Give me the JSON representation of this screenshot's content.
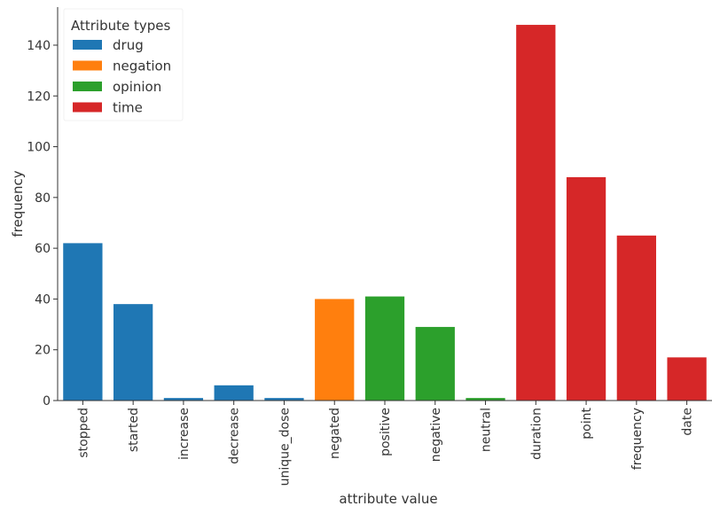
{
  "chart_data": {
    "type": "bar",
    "xlabel": "attribute value",
    "ylabel": "frequency",
    "ylim": [
      0,
      155
    ],
    "yticks": [
      0,
      20,
      40,
      60,
      80,
      100,
      120,
      140
    ],
    "grid": false,
    "legend": {
      "title": "Attribute types",
      "placement": "top-left",
      "entries": [
        {
          "name": "drug",
          "color": "#1f77b4"
        },
        {
          "name": "negation",
          "color": "#ff7f0e"
        },
        {
          "name": "opinion",
          "color": "#2ca02c"
        },
        {
          "name": "time",
          "color": "#d62728"
        }
      ]
    },
    "categories": [
      "stopped",
      "started",
      "increase",
      "decrease",
      "unique_dose",
      "negated",
      "positive",
      "negative",
      "neutral",
      "duration",
      "point",
      "frequency",
      "date"
    ],
    "values": [
      62,
      38,
      1,
      6,
      1,
      40,
      41,
      29,
      1,
      148,
      88,
      65,
      17
    ],
    "groups": [
      "drug",
      "drug",
      "drug",
      "drug",
      "drug",
      "negation",
      "opinion",
      "opinion",
      "opinion",
      "time",
      "time",
      "time",
      "time"
    ]
  }
}
